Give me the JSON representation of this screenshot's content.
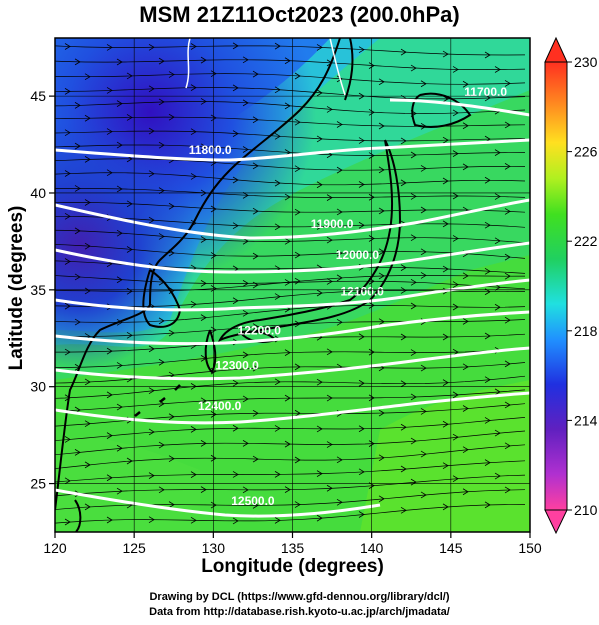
{
  "title": "MSM 21Z11Oct2023 (200.0hPa)",
  "xlabel": "Longitude (degrees)",
  "ylabel": "Latitude  (degrees)",
  "credits": {
    "line1": "Drawing by DCL (https://www.gfd-dennou.org/library/dcl/)",
    "line2": "Data from http://database.rish.kyoto-u.ac.jp/arch/jmadata/"
  },
  "map": {
    "lon_range": [
      120,
      150
    ],
    "lat_range": [
      22.5,
      48
    ],
    "lon_ticks": [
      120,
      125,
      130,
      135,
      140,
      145,
      150
    ],
    "lat_ticks": [
      25,
      30,
      35,
      40,
      45
    ],
    "shading_variable": "temperature (K)",
    "contour_variable": "geopotential height (m)",
    "contour_labels": [
      {
        "text": "11700.0",
        "lon": 147.2,
        "lat": 45.0
      },
      {
        "text": "11800.0",
        "lon": 129.8,
        "lat": 42.0
      },
      {
        "text": "11900.0",
        "lon": 137.5,
        "lat": 38.2
      },
      {
        "text": "12000.0",
        "lon": 139.1,
        "lat": 36.6
      },
      {
        "text": "12100.0",
        "lon": 139.4,
        "lat": 34.7
      },
      {
        "text": "12200.0",
        "lon": 132.9,
        "lat": 32.7
      },
      {
        "text": "12300.0",
        "lon": 131.5,
        "lat": 30.9
      },
      {
        "text": "12400.0",
        "lon": 130.4,
        "lat": 28.8
      },
      {
        "text": "12500.0",
        "lon": 132.5,
        "lat": 23.9
      }
    ],
    "wind_vectors": "streamlines with arrowheads, generally west-to-east"
  },
  "colorbar": {
    "min": 210,
    "max": 230,
    "tick_labels": [
      "230",
      "226",
      "222",
      "218",
      "214",
      "210"
    ],
    "colors": [
      "#ff40a0",
      "#b030d0",
      "#6020c0",
      "#2040e0",
      "#20a0ff",
      "#20e0e0",
      "#20d060",
      "#40e020",
      "#c0f020",
      "#ffe020",
      "#ff9020",
      "#ff3020"
    ]
  }
}
